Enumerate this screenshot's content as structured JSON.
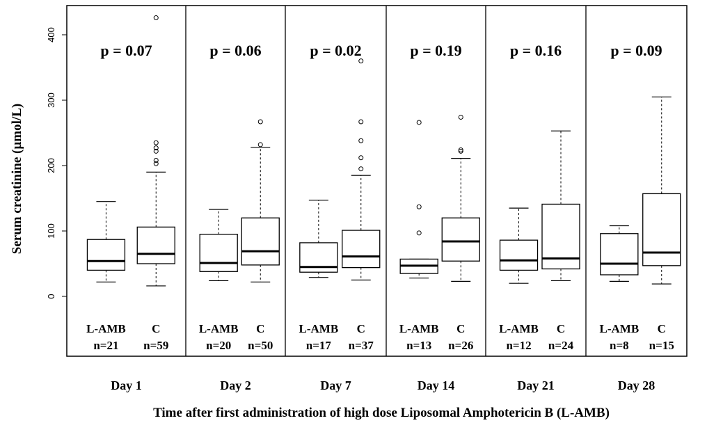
{
  "chart_data": {
    "type": "box",
    "ylabel": "Serum creatinine (µmol/L)",
    "xlabel": "Time after first administration of high dose Liposomal Amphotericin B (L-AMB)",
    "yticks": [
      0,
      100,
      200,
      300,
      400
    ],
    "grid": false,
    "panels": [
      {
        "day": "Day 1",
        "p": "p = 0.07",
        "groups": [
          {
            "name": "L-AMB",
            "n": "n=21",
            "whisker_low": 22,
            "q1": 40,
            "median": 54,
            "q3": 87,
            "whisker_high": 145,
            "outliers": []
          },
          {
            "name": "C",
            "n": "n=59",
            "whisker_low": 16,
            "q1": 50,
            "median": 65,
            "q3": 106,
            "whisker_high": 190,
            "outliers": [
              203,
              208,
              222,
              227,
              235,
              426
            ]
          }
        ]
      },
      {
        "day": "Day 2",
        "p": "p = 0.06",
        "groups": [
          {
            "name": "L-AMB",
            "n": "n=20",
            "whisker_low": 24,
            "q1": 38,
            "median": 51,
            "q3": 95,
            "whisker_high": 133,
            "outliers": []
          },
          {
            "name": "C",
            "n": "n=50",
            "whisker_low": 22,
            "q1": 48,
            "median": 69,
            "q3": 120,
            "whisker_high": 228,
            "outliers": [
              232,
              267
            ]
          }
        ]
      },
      {
        "day": "Day 7",
        "p": "p = 0.02",
        "groups": [
          {
            "name": "L-AMB",
            "n": "n=17",
            "whisker_low": 29,
            "q1": 37,
            "median": 45,
            "q3": 82,
            "whisker_high": 147,
            "outliers": []
          },
          {
            "name": "C",
            "n": "n=37",
            "whisker_low": 25,
            "q1": 44,
            "median": 61,
            "q3": 101,
            "whisker_high": 185,
            "outliers": [
              195,
              212,
              238,
              267,
              360
            ]
          }
        ]
      },
      {
        "day": "Day 14",
        "p": "p = 0.19",
        "groups": [
          {
            "name": "L-AMB",
            "n": "n=13",
            "whisker_low": 28,
            "q1": 35,
            "median": 47,
            "q3": 57,
            "whisker_high": 57,
            "outliers": [
              97,
              137,
              266
            ]
          },
          {
            "name": "C",
            "n": "n=26",
            "whisker_low": 23,
            "q1": 54,
            "median": 84,
            "q3": 120,
            "whisker_high": 211,
            "outliers": [
              222,
              224,
              274
            ]
          }
        ]
      },
      {
        "day": "Day 21",
        "p": "p = 0.16",
        "groups": [
          {
            "name": "L-AMB",
            "n": "n=12",
            "whisker_low": 20,
            "q1": 40,
            "median": 55,
            "q3": 86,
            "whisker_high": 135,
            "outliers": []
          },
          {
            "name": "C",
            "n": "n=24",
            "whisker_low": 24,
            "q1": 42,
            "median": 58,
            "q3": 141,
            "whisker_high": 253,
            "outliers": []
          }
        ]
      },
      {
        "day": "Day 28",
        "p": "p = 0.09",
        "groups": [
          {
            "name": "L-AMB",
            "n": "n=8",
            "whisker_low": 23,
            "q1": 33,
            "median": 50,
            "q3": 96,
            "whisker_high": 108,
            "outliers": []
          },
          {
            "name": "C",
            "n": "n=15",
            "whisker_low": 19,
            "q1": 47,
            "median": 67,
            "q3": 157,
            "whisker_high": 305,
            "outliers": []
          }
        ]
      }
    ]
  }
}
